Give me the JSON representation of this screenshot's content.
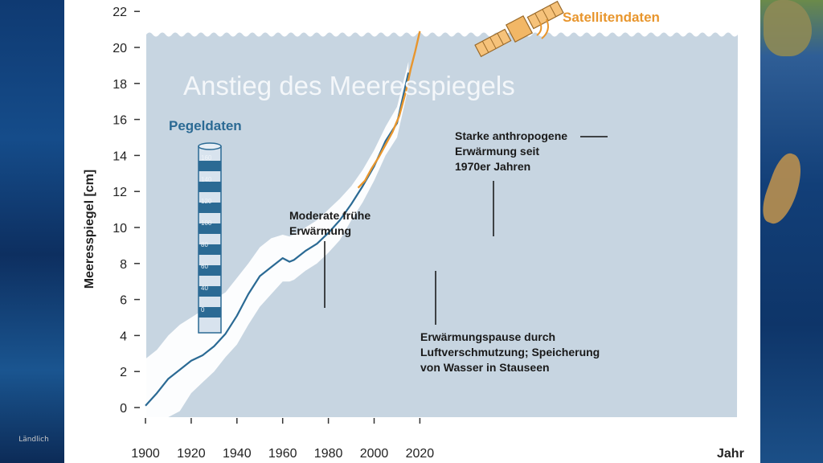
{
  "chart_data": {
    "type": "area",
    "title": "Anstieg des Meeresspiegels",
    "ylabel": "Meeresspiegel [cm]",
    "xlabel": "Jahr",
    "xlim": [
      1900,
      2025
    ],
    "ylim": [
      0,
      22
    ],
    "x_ticks": [
      1900,
      1920,
      1940,
      1960,
      1980,
      2000,
      2020
    ],
    "y_ticks": [
      0,
      2,
      4,
      6,
      8,
      10,
      12,
      14,
      16,
      18,
      20,
      22
    ],
    "grid": false,
    "series": [
      {
        "name": "Pegeldaten",
        "color": "#2b6a94",
        "x": [
          1900,
          1905,
          1910,
          1915,
          1920,
          1925,
          1930,
          1935,
          1940,
          1945,
          1950,
          1955,
          1960,
          1963,
          1965,
          1970,
          1975,
          1980,
          1985,
          1990,
          1995,
          2000,
          2005,
          2010,
          2015
        ],
        "y": [
          0.1,
          0.8,
          1.6,
          2.1,
          2.6,
          2.9,
          3.4,
          4.1,
          5.1,
          6.3,
          7.3,
          7.8,
          8.3,
          8.1,
          8.2,
          8.7,
          9.1,
          9.7,
          10.4,
          11.3,
          12.3,
          13.4,
          14.8,
          15.8,
          18.6
        ],
        "uncertainty_band": {
          "color": "#ffffff",
          "lower": [
            -1.2,
            -0.8,
            -0.6,
            -0.2,
            0.8,
            1.4,
            2.0,
            2.8,
            3.5,
            4.6,
            5.6,
            6.3,
            7.0,
            7.0,
            7.1,
            7.6,
            8.0,
            8.6,
            9.3,
            10.4,
            11.4,
            12.6,
            14.0,
            15.0,
            17.8
          ],
          "upper": [
            2.7,
            3.2,
            4.0,
            4.6,
            5.0,
            5.4,
            6.0,
            6.4,
            7.2,
            8.0,
            8.9,
            9.4,
            9.6,
            9.5,
            9.6,
            10.0,
            10.4,
            11.0,
            11.6,
            12.3,
            13.2,
            14.3,
            15.6,
            16.7,
            19.2
          ]
        }
      },
      {
        "name": "Satellitendaten",
        "color": "#e8962e",
        "x": [
          1993,
          1996,
          1999,
          2002,
          2005,
          2008,
          2011,
          2014,
          2016,
          2018,
          2020
        ],
        "y": [
          12.2,
          12.6,
          13.3,
          13.9,
          14.6,
          15.3,
          16.2,
          17.6,
          18.8,
          19.8,
          20.9
        ]
      }
    ],
    "annotations": [
      {
        "text": "Moderate frühe\nErwärmung",
        "x": 1939,
        "y": 5.5
      },
      {
        "text": "Erwärmungspause durch\nLuftverschmutzung; Speicherung\nvon Wasser in Stauseen",
        "x": 1963,
        "y": 7.6
      },
      {
        "text": "Starke anthropogene\nErwärmung seit\n1970er Jahren",
        "x": 1976,
        "y": 9.6
      }
    ],
    "gauge_labels": [
      "160",
      "140",
      "120",
      "100",
      "80",
      "60",
      "40",
      "0"
    ],
    "colors": {
      "sea": "#c7d5e1",
      "axis_text": "#222222",
      "title_text": "#f4f7fa",
      "tide_blue": "#2b6a94",
      "satellite_orange": "#e8962e"
    }
  },
  "logo_text": "Ländlich"
}
